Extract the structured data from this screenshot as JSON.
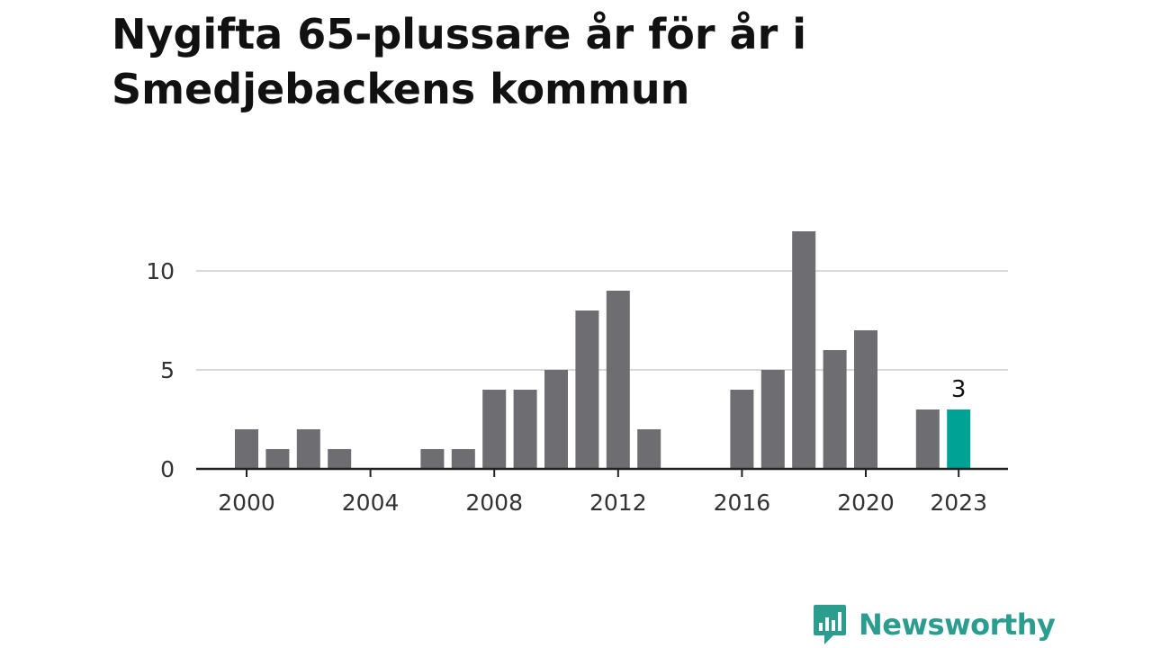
{
  "title": "Nygifta 65-plussare år för år i Smedjebackens kommun",
  "brand": {
    "name": "Newsworthy",
    "logo_icon": "bar-chart-speech-bubble-icon",
    "color": "#2a9d8f"
  },
  "colors": {
    "bar": "#6e6d72",
    "highlight": "#00a295",
    "grid": "#d9d9d9",
    "axis": "#222222"
  },
  "chart_data": {
    "type": "bar",
    "title": "Nygifta 65-plussare år för år i Smedjebackens kommun",
    "xlabel": "",
    "ylabel": "",
    "x": [
      2000,
      2001,
      2002,
      2003,
      2004,
      2005,
      2006,
      2007,
      2008,
      2009,
      2010,
      2011,
      2012,
      2013,
      2014,
      2015,
      2016,
      2017,
      2018,
      2019,
      2020,
      2021,
      2022,
      2023
    ],
    "values": [
      2,
      1,
      2,
      1,
      0,
      0,
      1,
      1,
      4,
      4,
      5,
      8,
      9,
      2,
      0,
      0,
      4,
      5,
      12,
      6,
      7,
      0,
      3,
      3
    ],
    "highlight_index": 23,
    "highlight_label": "3",
    "x_ticks": [
      2000,
      2004,
      2008,
      2012,
      2016,
      2020,
      2023
    ],
    "y_ticks": [
      0,
      5,
      10
    ],
    "ylim": [
      0,
      12
    ],
    "grid": true,
    "legend": "none"
  }
}
